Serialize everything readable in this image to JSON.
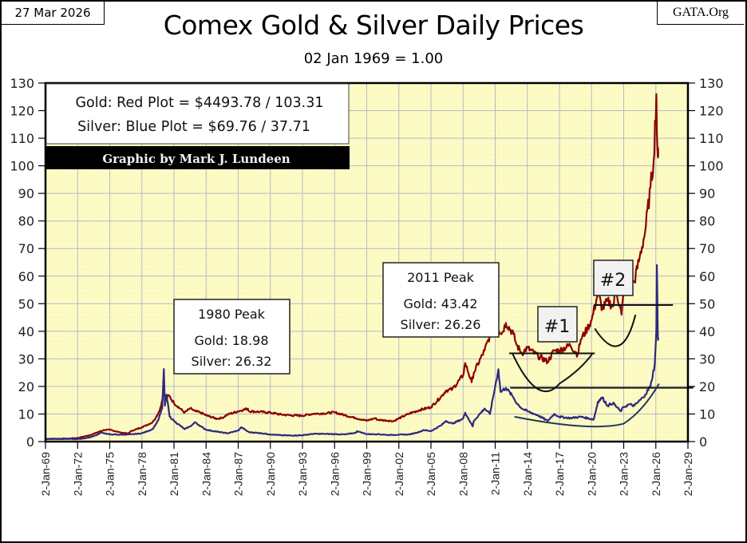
{
  "header": {
    "date": "27 Mar 2026",
    "source": "GATA.Org"
  },
  "chart_data": {
    "type": "line",
    "title": "Comex Gold & Silver Daily Prices",
    "subtitle": "02 Jan 1969 = 1.00",
    "xlabel": "",
    "ylabel": "",
    "ylim": [
      0,
      130
    ],
    "xlim": [
      1969,
      2029
    ],
    "grid": true,
    "y_ticks": [
      "0",
      "10",
      "20",
      "30",
      "40",
      "50",
      "60",
      "70",
      "80",
      "90",
      "100",
      "110",
      "120",
      "130"
    ],
    "y_tick_values": [
      0,
      10,
      20,
      30,
      40,
      50,
      60,
      70,
      80,
      90,
      100,
      110,
      120,
      130
    ],
    "x_ticks": [
      "2-Jan-69",
      "2-Jan-72",
      "2-Jan-75",
      "2-Jan-78",
      "2-Jan-81",
      "2-Jan-84",
      "2-Jan-87",
      "2-Jan-90",
      "2-Jan-93",
      "2-Jan-96",
      "2-Jan-99",
      "2-Jan-02",
      "2-Jan-05",
      "2-Jan-08",
      "2-Jan-11",
      "2-Jan-14",
      "2-Jan-17",
      "2-Jan-20",
      "2-Jan-23",
      "2-Jan-26",
      "2-Jan-29"
    ],
    "x_tick_values": [
      1969,
      1972,
      1975,
      1978,
      1981,
      1984,
      1987,
      1990,
      1993,
      1996,
      1999,
      2002,
      2005,
      2008,
      2011,
      2014,
      2017,
      2020,
      2023,
      2026,
      2029
    ],
    "legend": {
      "gold_line": "Gold: Red Plot =  $4493.78 / 103.31",
      "silver_line": "Silver: Blue Plot  =  $69.76 / 37.71",
      "credit": "Graphic by Mark J. Lundeen",
      "placement": "top-left"
    },
    "series": [
      {
        "name": "Gold",
        "color": "#8b0000",
        "x": [
          1969,
          1971,
          1972,
          1973,
          1973.5,
          1974,
          1974.5,
          1975,
          1976,
          1976.7,
          1977,
          1978,
          1979,
          1979.5,
          1979.8,
          1980.05,
          1980.2,
          1980.5,
          1981,
          1982,
          1982.5,
          1983,
          1983.5,
          1984,
          1985,
          1985.5,
          1986,
          1987,
          1987.9,
          1988,
          1989,
          1990,
          1991,
          1992,
          1993,
          1994,
          1995,
          1996,
          1997,
          1998,
          1999,
          1999.8,
          2000,
          2001,
          2001.5,
          2002,
          2003,
          2004,
          2005,
          2006,
          2006.4,
          2007,
          2008,
          2008.2,
          2008.8,
          2009,
          2010,
          2011,
          2011.6,
          2012,
          2012.7,
          2013,
          2013.5,
          2014,
          2015,
          2015.9,
          2016.5,
          2017,
          2018,
          2018.7,
          2019,
          2019.6,
          2020,
          2020.6,
          2021,
          2021.5,
          2022,
          2022.3,
          2022.8,
          2023,
          2023.5,
          2024,
          2024.5,
          2025,
          2025.5,
          2025.8,
          2026.05,
          2026.1,
          2026.2,
          2026.23
        ],
        "values": [
          1,
          1.05,
          1.3,
          2.2,
          2.8,
          3.6,
          4.2,
          4.3,
          3.3,
          2.9,
          3.8,
          5.2,
          7,
          10,
          13,
          18.98,
          15,
          16.8,
          14,
          10.5,
          12,
          11,
          10.5,
          9.5,
          8.3,
          8.6,
          9.8,
          11,
          12,
          11,
          10.8,
          10.5,
          9.8,
          9.5,
          9.4,
          10.1,
          10.2,
          10.6,
          9.5,
          8.5,
          7.6,
          8.5,
          7.9,
          7.6,
          7.4,
          8.4,
          10.2,
          11.5,
          12.5,
          16.5,
          18.5,
          19,
          24,
          28.5,
          21.5,
          25,
          33,
          43.42,
          39,
          43,
          39,
          35,
          32,
          34,
          31,
          29,
          33,
          33,
          35,
          31.5,
          37,
          41,
          44,
          54,
          48,
          51,
          49,
          55,
          46,
          54,
          57,
          58,
          67,
          76,
          92,
          102,
          126,
          112,
          103,
          103.31
        ]
      },
      {
        "name": "Silver",
        "color": "#2e2a7f",
        "x": [
          1969,
          1971,
          1972,
          1973,
          1973.8,
          1974.2,
          1975,
          1976,
          1977,
          1978,
          1979,
          1979.5,
          1979.9,
          1980.05,
          1980.15,
          1980.3,
          1980.6,
          1980.9,
          1981,
          1982,
          1982.5,
          1983,
          1983.5,
          1984,
          1985,
          1986,
          1987,
          1987.3,
          1988,
          1989,
          1990,
          1991,
          1992,
          1993,
          1994,
          1995,
          1996,
          1997,
          1998,
          1998.1,
          1999,
          2000,
          2001,
          2002,
          2003,
          2004,
          2004.3,
          2005,
          2006,
          2006.4,
          2007,
          2008,
          2008.2,
          2008.9,
          2009,
          2010,
          2010.5,
          2011,
          2011.3,
          2011.5,
          2012,
          2012.7,
          2013,
          2013.5,
          2014,
          2015,
          2015.9,
          2016.5,
          2017,
          2018,
          2019,
          2020.2,
          2020.6,
          2021,
          2021.5,
          2022,
          2022.7,
          2023,
          2023.5,
          2024,
          2024.8,
          2025,
          2025.5,
          2025.9,
          2026.05,
          2026.1,
          2026.15,
          2026.2,
          2026.23
        ],
        "values": [
          1,
          1.0,
          0.9,
          1.4,
          2.4,
          3.3,
          2.6,
          2.5,
          2.6,
          3,
          4.5,
          7.5,
          12,
          26.32,
          13,
          17,
          9,
          8,
          7.5,
          4.5,
          5.5,
          7,
          5.5,
          4.3,
          3.6,
          3,
          4,
          5.2,
          3.4,
          3.1,
          2.6,
          2.3,
          2.2,
          2.3,
          2.8,
          2.8,
          2.7,
          2.6,
          3.2,
          3.8,
          2.7,
          2.7,
          2.4,
          2.5,
          2.6,
          3.6,
          4.2,
          3.8,
          6,
          7.5,
          6.5,
          8.3,
          10.5,
          5.5,
          7.5,
          12,
          10,
          20,
          26.26,
          18,
          19.5,
          16,
          14,
          12,
          11,
          9.5,
          7.5,
          10,
          9,
          8.5,
          9,
          8,
          14.5,
          16,
          13,
          14,
          11,
          12.5,
          13.5,
          13,
          16,
          17,
          20,
          28,
          40,
          64,
          50,
          37,
          37.71
        ]
      }
    ],
    "annotations": [
      {
        "title": "1980 Peak",
        "gold": "Gold:  18.98",
        "silver": "Silver: 26.32"
      },
      {
        "title": "2011 Peak",
        "gold": "Gold:  43.42",
        "silver": "Silver: 26.26"
      },
      {
        "label": "#1"
      },
      {
        "label": "#2"
      }
    ],
    "reference_lines": [
      {
        "name": "gold-cup1-rim",
        "y": 32,
        "x_from": 2012.3,
        "x_to": 2020.3
      },
      {
        "name": "gold-cup2-rim",
        "y": 49.5,
        "x_from": 2020.2,
        "x_to": 2027.6
      },
      {
        "name": "silver-rim",
        "y": 19.5,
        "x_from": 2012.4,
        "x_to": 2029.5
      }
    ]
  }
}
